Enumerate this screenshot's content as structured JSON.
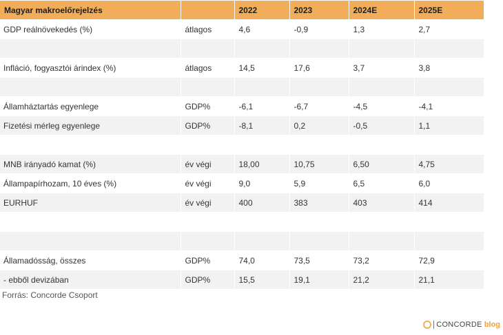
{
  "table": {
    "header": [
      "Magyar makroelőrejelzés",
      "",
      "2022",
      "2023",
      "2024E",
      "2025E"
    ],
    "rows": [
      [
        "GDP reálnövekedés (%)",
        "átlagos",
        "4,6",
        "-0,9",
        "1,3",
        "2,7"
      ],
      [
        "",
        "",
        "",
        "",
        "",
        ""
      ],
      [
        "Infláció, fogyasztói árindex (%)",
        "átlagos",
        "14,5",
        "17,6",
        "3,7",
        "3,8"
      ],
      [
        "",
        "",
        "",
        "",
        "",
        ""
      ],
      [
        "Államháztartás egyenlege",
        "GDP%",
        "-6,1",
        "-6,7",
        "-4,5",
        "-4,1"
      ],
      [
        "Fizetési mérleg egyenlege",
        "GDP%",
        "-8,1",
        "0,2",
        "-0,5",
        "1,1"
      ],
      [
        "",
        "",
        "",
        "",
        "",
        ""
      ],
      [
        "MNB irányadó kamat (%)",
        "év végi",
        "18,00",
        "10,75",
        "6,50",
        "4,75"
      ],
      [
        "Állampapírhozam, 10 éves (%)",
        "év végi",
        "9,0",
        "5,9",
        "6,5",
        "6,0"
      ],
      [
        "EURHUF",
        "év végi",
        "400",
        "383",
        "403",
        "414"
      ],
      [
        "",
        "",
        "",
        "",
        "",
        ""
      ],
      [
        "",
        "",
        "",
        "",
        "",
        ""
      ],
      [
        "Államadósság, összes",
        "GDP%",
        "74,0",
        "73,5",
        "73,2",
        "72,9"
      ],
      [
        "- ebből devizában",
        "GDP%",
        "15,5",
        "19,1",
        "21,2",
        "21,1"
      ]
    ]
  },
  "source": "Forrás: Concorde Csoport",
  "logo": {
    "icon": "concorde-logo-icon",
    "brand": "CONCORDE",
    "suffix": "blog"
  },
  "colors": {
    "header_bg": "#f2ad5a",
    "row_alt_bg": "#f2f2f2"
  }
}
